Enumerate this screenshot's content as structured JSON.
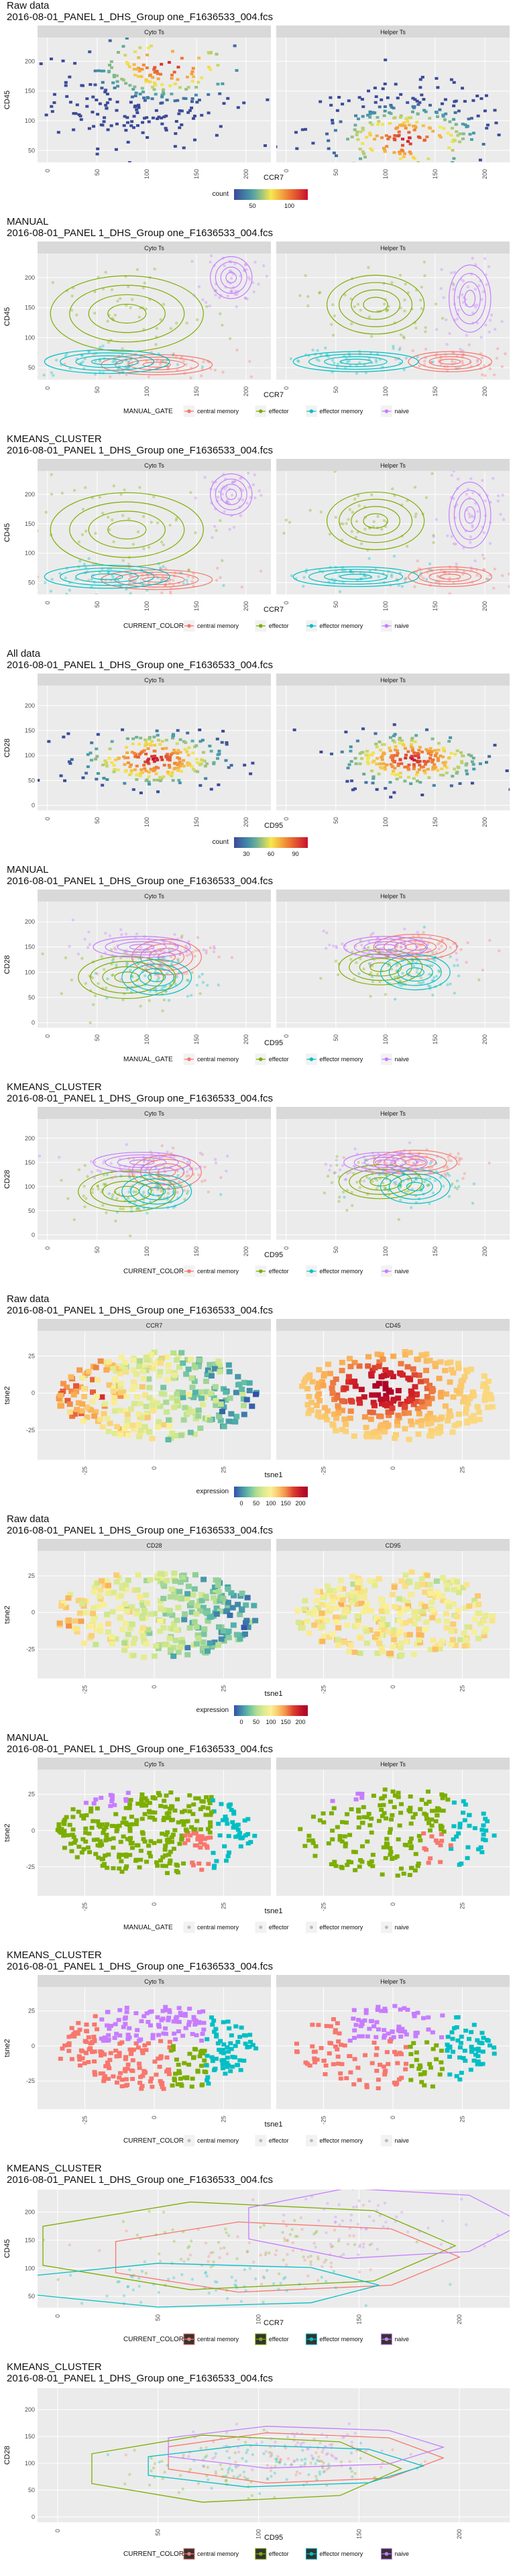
{
  "colors": {
    "central_memory": "#F8766D",
    "effector": "#7CAE00",
    "effector_memory": "#00BFC4",
    "naive": "#C77CFF",
    "density_low": "#3B4A9A",
    "density_mid": "#F6E84E",
    "density_high": "#C8102E"
  },
  "chart_data": [
    {
      "id": "c1",
      "type": "heatmap",
      "mode": "density",
      "title": "Raw data",
      "subtitle": "2016-08-01_PANEL 1_DHS_Group one_F1636533_004.fcs",
      "xlabel": "CCR7",
      "ylabel": "CD45",
      "panels": [
        "Cyto Ts",
        "Helper Ts"
      ],
      "xlim": [
        -10,
        225
      ],
      "ylim": [
        30,
        240
      ],
      "xticks": [
        "0",
        "50",
        "100",
        "150",
        "200"
      ],
      "yticks": [
        "50",
        "100",
        "150",
        "200"
      ],
      "legend": {
        "title": "count",
        "type": "colorbar",
        "ticks": [
          "50",
          "100"
        ],
        "position": "bottom"
      }
    },
    {
      "id": "c2",
      "type": "scatter",
      "mode": "clusters-contour",
      "title": "MANUAL",
      "subtitle": "2016-08-01_PANEL 1_DHS_Group one_F1636533_004.fcs",
      "xlabel": "CCR7",
      "ylabel": "CD45",
      "panels": [
        "Cyto Ts",
        "Helper Ts"
      ],
      "xlim": [
        -10,
        225
      ],
      "ylim": [
        30,
        240
      ],
      "xticks": [
        "0",
        "50",
        "100",
        "150",
        "200"
      ],
      "yticks": [
        "50",
        "100",
        "150",
        "200"
      ],
      "legend": {
        "title": "MANUAL_GATE",
        "type": "categorical",
        "position": "bottom",
        "entries": [
          "central memory",
          "effector",
          "effector memory",
          "naive"
        ]
      }
    },
    {
      "id": "c3",
      "type": "scatter",
      "mode": "clusters-contour",
      "title": "KMEANS_CLUSTER",
      "subtitle": "2016-08-01_PANEL 1_DHS_Group one_F1636533_004.fcs",
      "xlabel": "CCR7",
      "ylabel": "CD45",
      "panels": [
        "Cyto Ts",
        "Helper Ts"
      ],
      "xlim": [
        -10,
        225
      ],
      "ylim": [
        30,
        240
      ],
      "xticks": [
        "0",
        "50",
        "100",
        "150",
        "200"
      ],
      "yticks": [
        "50",
        "100",
        "150",
        "200"
      ],
      "legend": {
        "title": "CURRENT_COLOR",
        "type": "categorical",
        "position": "bottom",
        "entries": [
          "central memory",
          "effector",
          "effector memory",
          "naive"
        ]
      }
    },
    {
      "id": "c4",
      "type": "heatmap",
      "mode": "density",
      "title": "All data",
      "subtitle": "2016-08-01_PANEL 1_DHS_Group one_F1636533_004.fcs",
      "xlabel": "CD95",
      "ylabel": "CD28",
      "panels": [
        "Cyto Ts",
        "Helper Ts"
      ],
      "xlim": [
        -10,
        225
      ],
      "ylim": [
        -10,
        240
      ],
      "xticks": [
        "0",
        "50",
        "100",
        "150",
        "200"
      ],
      "yticks": [
        "0",
        "50",
        "100",
        "150",
        "200"
      ],
      "legend": {
        "title": "count",
        "type": "colorbar",
        "ticks": [
          "30",
          "60",
          "90"
        ],
        "position": "bottom"
      }
    },
    {
      "id": "c5",
      "type": "scatter",
      "mode": "clusters-contour",
      "title": "MANUAL",
      "subtitle": "2016-08-01_PANEL 1_DHS_Group one_F1636533_004.fcs",
      "xlabel": "CD95",
      "ylabel": "CD28",
      "panels": [
        "Cyto Ts",
        "Helper Ts"
      ],
      "xlim": [
        -10,
        225
      ],
      "ylim": [
        -10,
        240
      ],
      "xticks": [
        "0",
        "50",
        "100",
        "150",
        "200"
      ],
      "yticks": [
        "0",
        "50",
        "100",
        "150",
        "200"
      ],
      "legend": {
        "title": "MANUAL_GATE",
        "type": "categorical",
        "position": "bottom",
        "entries": [
          "central memory",
          "effector",
          "effector memory",
          "naive"
        ]
      }
    },
    {
      "id": "c6",
      "type": "scatter",
      "mode": "clusters-contour",
      "title": "KMEANS_CLUSTER",
      "subtitle": "2016-08-01_PANEL 1_DHS_Group one_F1636533_004.fcs",
      "xlabel": "CD95",
      "ylabel": "CD28",
      "panels": [
        "Cyto Ts",
        "Helper Ts"
      ],
      "xlim": [
        -10,
        225
      ],
      "ylim": [
        -10,
        240
      ],
      "xticks": [
        "0",
        "50",
        "100",
        "150",
        "200"
      ],
      "yticks": [
        "0",
        "50",
        "100",
        "150",
        "200"
      ],
      "legend": {
        "title": "CURRENT_COLOR",
        "type": "categorical",
        "position": "bottom",
        "entries": [
          "central memory",
          "effector",
          "effector memory",
          "naive"
        ]
      }
    },
    {
      "id": "c7",
      "type": "scatter",
      "mode": "tsne-expression",
      "title": "Raw data",
      "subtitle": "2016-08-01_PANEL 1_DHS_Group one_F1636533_004.fcs",
      "xlabel": "tsne1",
      "ylabel": "tsne2",
      "panels": [
        "CCR7",
        "CD45"
      ],
      "xlim": [
        -42,
        42
      ],
      "ylim": [
        -45,
        42
      ],
      "xticks": [
        "-25",
        "0",
        "25"
      ],
      "yticks": [
        "-25",
        "0",
        "25"
      ],
      "legend": {
        "title": "expression",
        "type": "colorbar",
        "ticks": [
          "0",
          "50",
          "100",
          "150",
          "200"
        ],
        "position": "bottom"
      }
    },
    {
      "id": "c8",
      "type": "scatter",
      "mode": "tsne-expression",
      "title": "Raw data",
      "subtitle": "2016-08-01_PANEL 1_DHS_Group one_F1636533_004.fcs",
      "xlabel": "tsne1",
      "ylabel": "tsne2",
      "panels": [
        "CD28",
        "CD95"
      ],
      "xlim": [
        -42,
        42
      ],
      "ylim": [
        -45,
        42
      ],
      "xticks": [
        "-25",
        "0",
        "25"
      ],
      "yticks": [
        "-25",
        "0",
        "25"
      ],
      "legend": {
        "title": "expression",
        "type": "colorbar",
        "ticks": [
          "0",
          "50",
          "100",
          "150",
          "200"
        ],
        "position": "bottom"
      }
    },
    {
      "id": "c9",
      "type": "scatter",
      "mode": "tsne-clusters",
      "title": "MANUAL",
      "subtitle": "2016-08-01_PANEL 1_DHS_Group one_F1636533_004.fcs",
      "xlabel": "tsne1",
      "ylabel": "tsne2",
      "panels": [
        "Cyto Ts",
        "Helper Ts"
      ],
      "xlim": [
        -42,
        42
      ],
      "ylim": [
        -45,
        42
      ],
      "xticks": [
        "-25",
        "0",
        "25"
      ],
      "yticks": [
        "-25",
        "0",
        "25"
      ],
      "legend": {
        "title": "MANUAL_GATE",
        "type": "categorical-muted",
        "position": "bottom",
        "entries": [
          "central memory",
          "effector",
          "effector memory",
          "naive"
        ]
      }
    },
    {
      "id": "c10",
      "type": "scatter",
      "mode": "tsne-clusters",
      "title": "KMEANS_CLUSTER",
      "subtitle": "2016-08-01_PANEL 1_DHS_Group one_F1636533_004.fcs",
      "xlabel": "tsne1",
      "ylabel": "tsne2",
      "panels": [
        "Cyto Ts",
        "Helper Ts"
      ],
      "xlim": [
        -42,
        42
      ],
      "ylim": [
        -45,
        42
      ],
      "xticks": [
        "-25",
        "0",
        "25"
      ],
      "yticks": [
        "-25",
        "0",
        "25"
      ],
      "legend": {
        "title": "CURRENT_COLOR",
        "type": "categorical-muted",
        "position": "bottom",
        "entries": [
          "central memory",
          "effector",
          "effector memory",
          "naive"
        ]
      }
    },
    {
      "id": "c11",
      "type": "scatter",
      "mode": "hull",
      "title": "KMEANS_CLUSTER",
      "subtitle": "2016-08-01_PANEL 1_DHS_Group one_F1636533_004.fcs",
      "xlabel": "CCR7",
      "ylabel": "CD45",
      "panels": [],
      "xlim": [
        -10,
        225
      ],
      "ylim": [
        30,
        240
      ],
      "xticks": [
        "0",
        "50",
        "100",
        "150",
        "200"
      ],
      "yticks": [
        "50",
        "100",
        "150",
        "200"
      ],
      "legend": {
        "title": "CURRENT_COLOR",
        "type": "categorical-dark",
        "position": "bottom",
        "entries": [
          "central memory",
          "effector",
          "effector memory",
          "naive"
        ]
      }
    },
    {
      "id": "c12",
      "type": "scatter",
      "mode": "hull",
      "title": "KMEANS_CLUSTER",
      "subtitle": "2016-08-01_PANEL 1_DHS_Group one_F1636533_004.fcs",
      "xlabel": "CD95",
      "ylabel": "CD28",
      "panels": [],
      "xlim": [
        -10,
        225
      ],
      "ylim": [
        -10,
        240
      ],
      "xticks": [
        "0",
        "50",
        "100",
        "150",
        "200"
      ],
      "yticks": [
        "0",
        "50",
        "100",
        "150",
        "200"
      ],
      "legend": {
        "title": "CURRENT_COLOR",
        "type": "categorical-dark",
        "position": "bottom",
        "entries": [
          "central memory",
          "effector",
          "effector memory",
          "naive"
        ]
      }
    }
  ]
}
